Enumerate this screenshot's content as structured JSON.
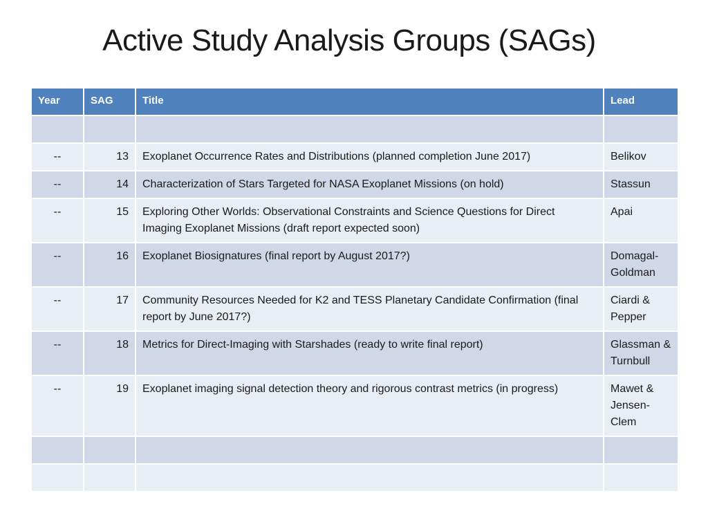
{
  "slide": {
    "title": "Active Study Analysis Groups (SAGs)"
  },
  "table": {
    "headers": {
      "year": "Year",
      "sag": "SAG",
      "title": "Title",
      "lead": "Lead"
    },
    "rows": [
      {
        "year": "",
        "sag": "",
        "title": "",
        "lead": ""
      },
      {
        "year": "--",
        "sag": "13",
        "title": "Exoplanet Occurrence Rates and Distributions (planned completion June 2017)",
        "lead": "Belikov"
      },
      {
        "year": "--",
        "sag": "14",
        "title": "Characterization of Stars Targeted for NASA Exoplanet Missions (on hold)",
        "lead": "Stassun"
      },
      {
        "year": "--",
        "sag": "15",
        "title": "Exploring Other Worlds: Observational Constraints and Science Questions for Direct Imaging Exoplanet Missions (draft report expected soon)",
        "lead": "Apai"
      },
      {
        "year": "--",
        "sag": "16",
        "title": "Exoplanet Biosignatures (final report by August 2017?)",
        "lead": "Domagal-Goldman"
      },
      {
        "year": "--",
        "sag": "17",
        "title": "Community Resources Needed for K2 and TESS Planetary Candidate Confirmation (final report by June 2017?)",
        "lead": "Ciardi & Pepper"
      },
      {
        "year": "--",
        "sag": "18",
        "title": "Metrics for Direct-Imaging with Starshades (ready to write final report)",
        "lead": "Glassman & Turnbull"
      },
      {
        "year": "--",
        "sag": "19",
        "title": "Exoplanet imaging signal detection theory and rigorous contrast metrics (in progress)",
        "lead": "Mawet & Jensen-Clem"
      },
      {
        "year": "",
        "sag": "",
        "title": "",
        "lead": ""
      },
      {
        "year": "",
        "sag": "",
        "title": "",
        "lead": ""
      }
    ]
  },
  "colors": {
    "header_bg": "#4f81bd",
    "band_dark": "#d0d8e8",
    "band_light": "#e9edf4"
  }
}
